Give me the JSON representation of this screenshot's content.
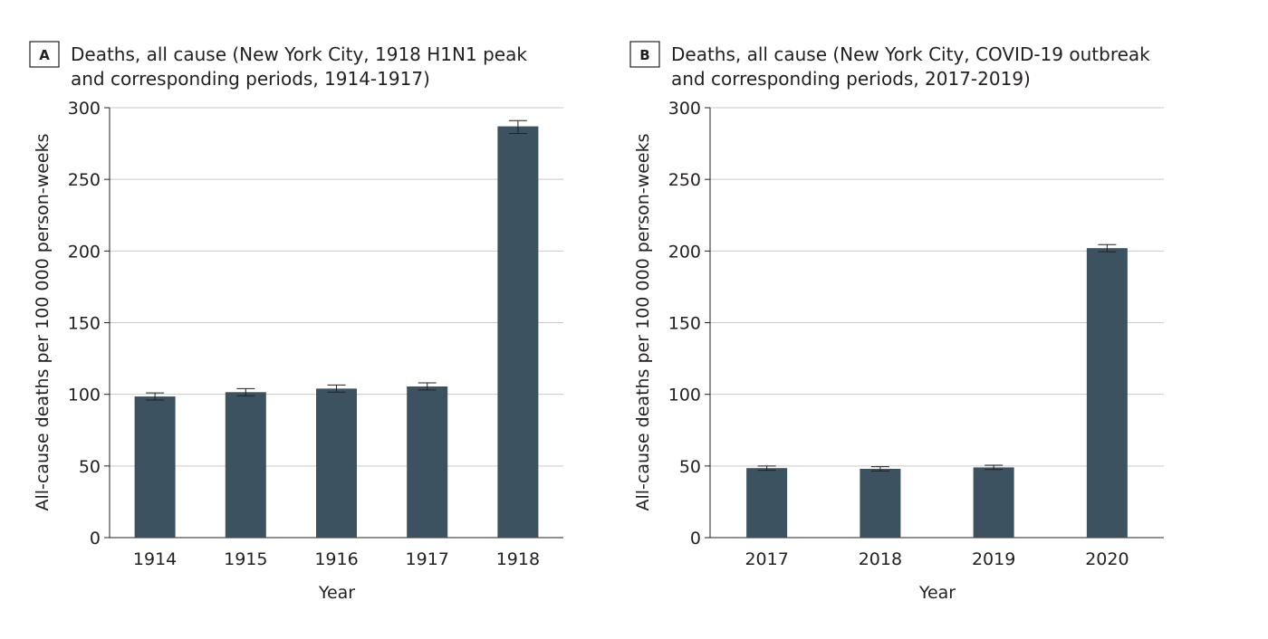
{
  "chart_data": [
    {
      "panel": "A",
      "type": "bar",
      "title_line1": "Deaths, all cause  (New York City, 1918 H1N1 peak",
      "title_line2": "and corresponding periods, 1914-1917)",
      "xlabel": "Year",
      "ylabel": "All-cause deaths per 100 000 person-weeks",
      "ylim": [
        0,
        300
      ],
      "yticks": [
        0,
        50,
        100,
        150,
        200,
        250,
        300
      ],
      "grid": true,
      "bar_color": "#3d5260",
      "categories": [
        "1914",
        "1915",
        "1916",
        "1917",
        "1918"
      ],
      "values": [
        98.5,
        101.5,
        104,
        105.5,
        287
      ],
      "error_low": [
        96,
        99,
        101.5,
        103,
        282
      ],
      "error_high": [
        101,
        104,
        106.5,
        108,
        291
      ]
    },
    {
      "panel": "B",
      "type": "bar",
      "title_line1": "Deaths, all cause (New York City, COVID-19 outbreak",
      "title_line2": "and corresponding periods, 2017-2019)",
      "xlabel": "Year",
      "ylabel": "All-cause deaths per 100 000 person-weeks",
      "ylim": [
        0,
        300
      ],
      "yticks": [
        0,
        50,
        100,
        150,
        200,
        250,
        300
      ],
      "grid": true,
      "bar_color": "#3d5260",
      "categories": [
        "2017",
        "2018",
        "2019",
        "2020"
      ],
      "values": [
        48.5,
        48,
        49,
        202
      ],
      "error_low": [
        47,
        46.5,
        47.5,
        199.5
      ],
      "error_high": [
        50,
        49.5,
        50.5,
        204.5
      ]
    }
  ]
}
